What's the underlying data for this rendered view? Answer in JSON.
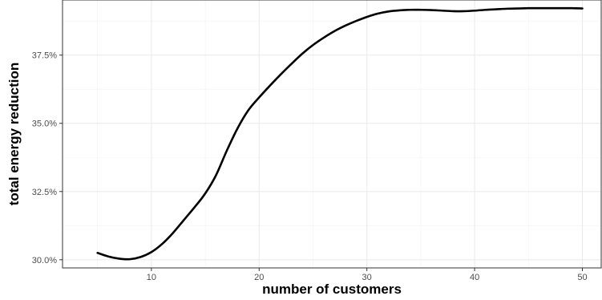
{
  "chart_data": {
    "type": "line",
    "xlabel": "number of customers",
    "ylabel": "total energy reduction",
    "xlim": [
      1.75,
      51.75
    ],
    "ylim": [
      29.7,
      39.52
    ],
    "x_ticks": [
      10,
      20,
      30,
      40,
      50
    ],
    "x_tick_labels": [
      "10",
      "20",
      "30",
      "40",
      "50"
    ],
    "y_ticks": [
      30.0,
      32.5,
      35.0,
      37.5
    ],
    "y_tick_labels": [
      "30.0%",
      "32.5%",
      "35.0%",
      "37.5%"
    ],
    "grid": true,
    "series": [
      {
        "color": "#000000",
        "points": [
          [
            5,
            30.25
          ],
          [
            6,
            30.12
          ],
          [
            7,
            30.04
          ],
          [
            8,
            30.02
          ],
          [
            9,
            30.1
          ],
          [
            10,
            30.28
          ],
          [
            11,
            30.58
          ],
          [
            12,
            30.98
          ],
          [
            13,
            31.45
          ],
          [
            14,
            31.92
          ],
          [
            15,
            32.43
          ],
          [
            16,
            33.1
          ],
          [
            17,
            34.0
          ],
          [
            18,
            34.82
          ],
          [
            19,
            35.48
          ],
          [
            20,
            35.95
          ],
          [
            21,
            36.38
          ],
          [
            22,
            36.79
          ],
          [
            23,
            37.18
          ],
          [
            24,
            37.55
          ],
          [
            25,
            37.87
          ],
          [
            26,
            38.14
          ],
          [
            27,
            38.38
          ],
          [
            28,
            38.58
          ],
          [
            29,
            38.75
          ],
          [
            30,
            38.9
          ],
          [
            31,
            39.02
          ],
          [
            32,
            39.1
          ],
          [
            33,
            39.14
          ],
          [
            34,
            39.16
          ],
          [
            35,
            39.16
          ],
          [
            36,
            39.15
          ],
          [
            37,
            39.13
          ],
          [
            38,
            39.11
          ],
          [
            39,
            39.11
          ],
          [
            40,
            39.13
          ],
          [
            41,
            39.16
          ],
          [
            42,
            39.18
          ],
          [
            43,
            39.2
          ],
          [
            44,
            39.21
          ],
          [
            45,
            39.22
          ],
          [
            46,
            39.22
          ],
          [
            47,
            39.22
          ],
          [
            48,
            39.22
          ],
          [
            49,
            39.22
          ],
          [
            50,
            39.21
          ]
        ]
      }
    ]
  }
}
